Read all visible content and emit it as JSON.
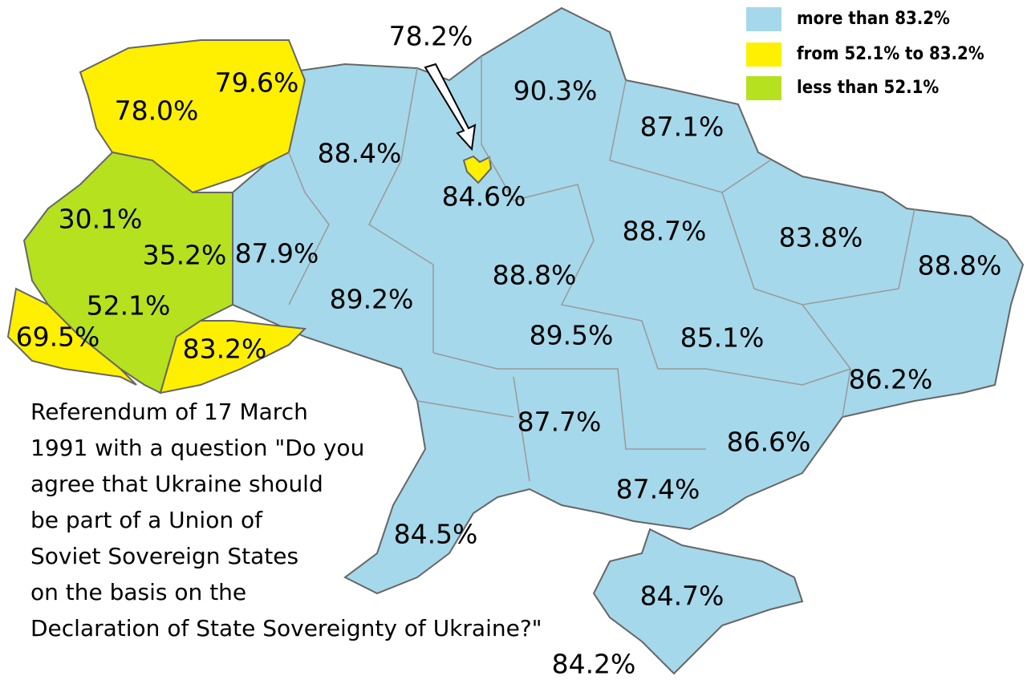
{
  "legend": [
    {
      "label": "more than 83.2%",
      "color": "#a5d8ea"
    },
    {
      "label": "from 52.1% to 83.2%",
      "color": "#ffef00"
    },
    {
      "label": "less than 52.1%",
      "color": "#b5e11f"
    }
  ],
  "regions": [
    {
      "label": "78.0%",
      "color": "#ffef00"
    },
    {
      "label": "79.6%",
      "color": "#ffef00"
    },
    {
      "label": "30.1%",
      "color": "#b5e11f"
    },
    {
      "label": "35.2%",
      "color": "#b5e11f"
    },
    {
      "label": "52.1%",
      "color": "#b5e11f"
    },
    {
      "label": "69.5%",
      "color": "#ffef00"
    },
    {
      "label": "83.2%",
      "color": "#ffef00"
    },
    {
      "label": "87.9%",
      "color": "#a5d8ea"
    },
    {
      "label": "88.4%",
      "color": "#a5d8ea"
    },
    {
      "label": "84.6%",
      "color": "#a5d8ea"
    },
    {
      "label": "90.3%",
      "color": "#a5d8ea"
    },
    {
      "label": "87.1%",
      "color": "#a5d8ea"
    },
    {
      "label": "88.7%",
      "color": "#a5d8ea"
    },
    {
      "label": "83.8%",
      "color": "#a5d8ea"
    },
    {
      "label": "88.8%",
      "color": "#a5d8ea"
    },
    {
      "label": "88.8%",
      "color": "#a5d8ea"
    },
    {
      "label": "89.2%",
      "color": "#a5d8ea"
    },
    {
      "label": "89.5%",
      "color": "#a5d8ea"
    },
    {
      "label": "85.1%",
      "color": "#a5d8ea"
    },
    {
      "label": "86.2%",
      "color": "#a5d8ea"
    },
    {
      "label": "87.7%",
      "color": "#a5d8ea"
    },
    {
      "label": "86.6%",
      "color": "#a5d8ea"
    },
    {
      "label": "87.4%",
      "color": "#a5d8ea"
    },
    {
      "label": "84.5%",
      "color": "#a5d8ea"
    },
    {
      "label": "84.7%",
      "color": "#a5d8ea"
    },
    {
      "label": "84.2%",
      "color": "#a5d8ea"
    },
    {
      "label": "78.2%",
      "color": "#ffef00"
    }
  ],
  "caption": [
    "Referendum of 17 March",
    "1991 with a question \"Do you",
    "agree that Ukraine should",
    "be part of a Union of",
    "Soviet Sovereign States",
    "on the basis on the",
    "Declaration of State Sovereignty of Ukraine?\""
  ]
}
